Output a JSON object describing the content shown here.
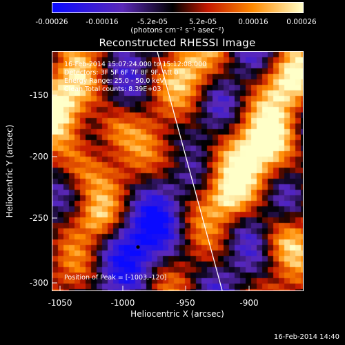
{
  "colorbar": {
    "ticks": [
      "-0.00026",
      "-0.00016",
      "-5.2e-05",
      "5.2e-05",
      "0.00016",
      "0.00026"
    ],
    "unit_label": "(photons cm⁻² s⁻¹ asec⁻²)",
    "colors": [
      "#0a0aff",
      "#5a28b8",
      "#000000",
      "#c41800",
      "#ff8a00",
      "#ffffc8"
    ]
  },
  "title": "Reconstructed RHESSI Image",
  "info": {
    "time_range": "16-Feb-2014 15:07:24.000 to 15:12:08.000",
    "detectors": "Detectors: 3F 5F 6F 7F 8F 9F, Att 0",
    "energy": "Energy Range: 25.0 - 50.0 keV",
    "algorithm": "Clean     Total counts: 8.39E+03",
    "peak": "Position of Peak = [-1003,-120]"
  },
  "axes": {
    "x_label": "Heliocentric X (arcsec)",
    "y_label": "Heliocentric Y (arcsec)",
    "x_ticks": [
      "-1050",
      "-1000",
      "-950",
      "-900"
    ],
    "y_ticks": [
      "-150",
      "-200",
      "-250",
      "-300"
    ]
  },
  "timestamp": "16-Feb-2014 14:40"
}
